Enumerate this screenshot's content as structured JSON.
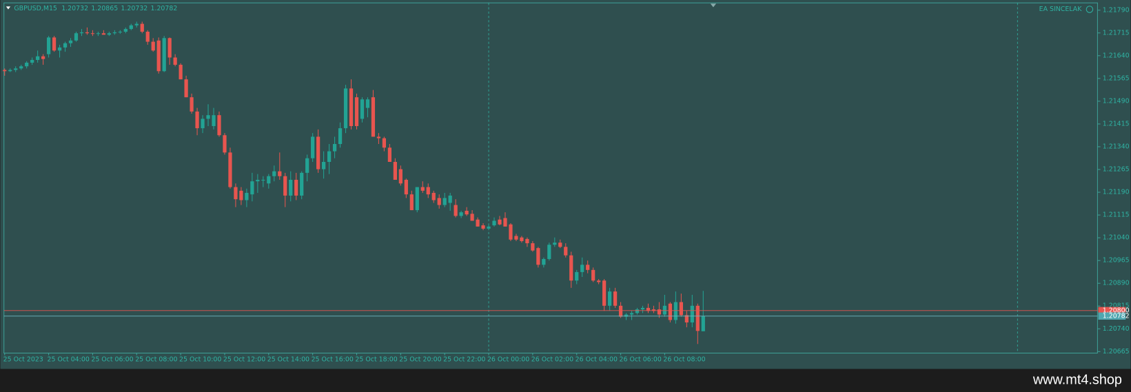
{
  "chart_data": {
    "type": "candlestick",
    "title": "GBPUSD,M15",
    "overlay_label": "EA SINCELAK",
    "watermark": "www.mt4.shop",
    "up_color": "#22a394",
    "down_color": "#e8554f",
    "ylim": [
      1.2066,
      1.21814
    ],
    "yticks": [
      1.20665,
      {
        "value": 1.2074,
        "label": "1.20740"
      },
      1.20815,
      {
        "value": 1.2089,
        "label": "1.20890"
      },
      1.20965,
      {
        "value": 1.2104,
        "label": "1.21040"
      },
      1.21115,
      {
        "value": 1.2119,
        "label": "1.21190"
      },
      1.21265,
      {
        "value": 1.2134,
        "label": "1.21340"
      },
      1.21415,
      {
        "value": 1.2149,
        "label": "1.21490"
      },
      1.21565,
      {
        "value": 1.2164,
        "label": "1.21640"
      },
      1.21715,
      {
        "value": 1.2179,
        "label": "1.21790"
      }
    ],
    "ask_line": {
      "value": 1.208,
      "label": "1.20800"
    },
    "categories": [
      "25 Oct 2023",
      null,
      null,
      null,
      null,
      null,
      null,
      null,
      "25 Oct 04:00",
      null,
      null,
      null,
      null,
      null,
      null,
      null,
      "25 Oct 06:00",
      null,
      null,
      null,
      null,
      null,
      null,
      null,
      "25 Oct 08:00",
      null,
      null,
      null,
      null,
      null,
      null,
      null,
      "25 Oct 10:00",
      null,
      null,
      null,
      null,
      null,
      null,
      null,
      "25 Oct 12:00",
      null,
      null,
      null,
      null,
      null,
      null,
      null,
      "25 Oct 14:00",
      null,
      null,
      null,
      null,
      null,
      null,
      null,
      "25 Oct 16:00",
      null,
      null,
      null,
      null,
      null,
      null,
      null,
      "25 Oct 18:00",
      null,
      null,
      null,
      null,
      null,
      null,
      null,
      "25 Oct 20:00",
      null,
      null,
      null,
      null,
      null,
      null,
      null,
      "25 Oct 22:00",
      null,
      null,
      null,
      null,
      null,
      null,
      null,
      "26 Oct 00:00",
      null,
      null,
      null,
      null,
      null,
      null,
      null,
      "26 Oct 02:00",
      null,
      null,
      null,
      null,
      null,
      null,
      null,
      "26 Oct 04:00",
      null,
      null,
      null,
      null,
      null,
      null,
      null,
      "26 Oct 06:00",
      null,
      null,
      null,
      null,
      null,
      null,
      null,
      "26 Oct 08:00",
      null,
      null,
      null,
      null,
      null,
      null,
      null
    ],
    "ohlc": [
      [
        1.21593,
        1.21598,
        1.21574,
        1.21589
      ],
      [
        1.21589,
        1.21598,
        1.21586,
        1.21593
      ],
      [
        1.21593,
        1.21605,
        1.21586,
        1.21598
      ],
      [
        1.21598,
        1.2161,
        1.21593,
        1.21605
      ],
      [
        1.21605,
        1.21622,
        1.21598,
        1.21617
      ],
      [
        1.21617,
        1.21634,
        1.2161,
        1.21626
      ],
      [
        1.21626,
        1.21657,
        1.21617,
        1.21638
      ],
      [
        1.21638,
        1.21645,
        1.2161,
        1.21629
      ],
      [
        1.21645,
        1.21705,
        1.21634,
        1.217
      ],
      [
        1.217,
        1.21705,
        1.21653,
        1.21657
      ],
      [
        1.21657,
        1.21676,
        1.21634,
        1.21667
      ],
      [
        1.21667,
        1.21686,
        1.21653,
        1.21681
      ],
      [
        1.21681,
        1.21698,
        1.21669,
        1.2169
      ],
      [
        1.2169,
        1.21719,
        1.21686,
        1.21714
      ],
      [
        1.21714,
        1.21728,
        1.21705,
        1.21717
      ],
      [
        1.21717,
        1.21733,
        1.21709,
        1.21714
      ],
      [
        1.21714,
        1.21724,
        1.21705,
        1.21712
      ],
      [
        1.21712,
        1.21719,
        1.21705,
        1.21714
      ],
      [
        1.21714,
        1.21724,
        1.21709,
        1.21709
      ],
      [
        1.21709,
        1.21719,
        1.21705,
        1.21714
      ],
      [
        1.21714,
        1.21724,
        1.21709,
        1.21717
      ],
      [
        1.21717,
        1.21724,
        1.21712,
        1.21719
      ],
      [
        1.21719,
        1.21733,
        1.21714,
        1.21728
      ],
      [
        1.21728,
        1.21745,
        1.21724,
        1.2174
      ],
      [
        1.2174,
        1.21752,
        1.21733,
        1.21745
      ],
      [
        1.21745,
        1.21752,
        1.21714,
        1.21719
      ],
      [
        1.21719,
        1.21724,
        1.21676,
        1.21686
      ],
      [
        1.21686,
        1.21698,
        1.21653,
        1.21657
      ],
      [
        1.2169,
        1.217,
        1.21581,
        1.21589
      ],
      [
        1.21589,
        1.21705,
        1.21586,
        1.21698
      ],
      [
        1.21698,
        1.217,
        1.2161,
        1.21634
      ],
      [
        1.21634,
        1.21645,
        1.21605,
        1.2161
      ],
      [
        1.2161,
        1.21615,
        1.21562,
        1.21562
      ],
      [
        1.21562,
        1.21574,
        1.21503,
        1.21503
      ],
      [
        1.21503,
        1.21515,
        1.21449,
        1.21456
      ],
      [
        1.21456,
        1.21468,
        1.21378,
        1.21401
      ],
      [
        1.21401,
        1.21444,
        1.21385,
        1.21432
      ],
      [
        1.21432,
        1.2148,
        1.21408,
        1.21444
      ],
      [
        1.21408,
        1.21468,
        1.21397,
        1.21444
      ],
      [
        1.21444,
        1.21456,
        1.21373,
        1.21378
      ],
      [
        1.21378,
        1.21385,
        1.21314,
        1.21321
      ],
      [
        1.21321,
        1.21337,
        1.21202,
        1.21207
      ],
      [
        1.21207,
        1.21219,
        1.21141,
        1.21167
      ],
      [
        1.21195,
        1.21207,
        1.21148,
        1.21164
      ],
      [
        1.21164,
        1.21202,
        1.21141,
        1.21188
      ],
      [
        1.21183,
        1.21254,
        1.2116,
        1.21226
      ],
      [
        1.21226,
        1.2125,
        1.21188,
        1.21231
      ],
      [
        1.21231,
        1.21243,
        1.21207,
        1.21231
      ],
      [
        1.21219,
        1.2125,
        1.21202,
        1.21243
      ],
      [
        1.21243,
        1.21278,
        1.21226,
        1.21259
      ],
      [
        1.21259,
        1.21321,
        1.21231,
        1.21243
      ],
      [
        1.21243,
        1.21254,
        1.21141,
        1.21179
      ],
      [
        1.21179,
        1.21259,
        1.2116,
        1.21231
      ],
      [
        1.21231,
        1.21254,
        1.21164,
        1.21179
      ],
      [
        1.21179,
        1.21259,
        1.21167,
        1.21254
      ],
      [
        1.21254,
        1.21314,
        1.21226,
        1.21302
      ],
      [
        1.21302,
        1.21385,
        1.2129,
        1.21373
      ],
      [
        1.21373,
        1.21397,
        1.21254,
        1.21266
      ],
      [
        1.21266,
        1.21325,
        1.21235,
        1.2129
      ],
      [
        1.2129,
        1.21349,
        1.2125,
        1.21325
      ],
      [
        1.21325,
        1.21373,
        1.21302,
        1.21349
      ],
      [
        1.21349,
        1.2142,
        1.21337,
        1.21401
      ],
      [
        1.21401,
        1.21544,
        1.21385,
        1.21532
      ],
      [
        1.21532,
        1.21562,
        1.21397,
        1.21408
      ],
      [
        1.21503,
        1.21515,
        1.21397,
        1.21408
      ],
      [
        1.21432,
        1.21503,
        1.2142,
        1.21496
      ],
      [
        1.21468,
        1.21503,
        1.21437,
        1.21496
      ],
      [
        1.21503,
        1.21527,
        1.21373,
        1.21373
      ],
      [
        1.21373,
        1.21385,
        1.21349,
        1.21368
      ],
      [
        1.21368,
        1.21373,
        1.21325,
        1.21337
      ],
      [
        1.21337,
        1.21349,
        1.2129,
        1.2129
      ],
      [
        1.2129,
        1.21302,
        1.21231,
        1.21231
      ],
      [
        1.21266,
        1.21278,
        1.21212,
        1.21219
      ],
      [
        1.21231,
        1.21235,
        1.21171,
        1.21183
      ],
      [
        1.21183,
        1.21195,
        1.21131,
        1.21131
      ],
      [
        1.21131,
        1.21207,
        1.21124,
        1.21207
      ],
      [
        1.21207,
        1.21226,
        1.21188,
        1.21195
      ],
      [
        1.21207,
        1.21219,
        1.21171,
        1.21183
      ],
      [
        1.21188,
        1.21195,
        1.21155,
        1.21164
      ],
      [
        1.21171,
        1.21183,
        1.21136,
        1.21148
      ],
      [
        1.21148,
        1.21188,
        1.21141,
        1.21171
      ],
      [
        1.21155,
        1.21188,
        1.21129,
        1.21179
      ],
      [
        1.21148,
        1.21167,
        1.21107,
        1.21112
      ],
      [
        1.21112,
        1.21129,
        1.21105,
        1.21124
      ],
      [
        1.21129,
        1.21141,
        1.21112,
        1.21117
      ],
      [
        1.21119,
        1.21131,
        1.21096,
        1.21096
      ],
      [
        1.211,
        1.21107,
        1.21077,
        1.21077
      ],
      [
        1.21081,
        1.21088,
        1.21065,
        1.2107
      ],
      [
        1.2107,
        1.21084,
        1.21065,
        1.21077
      ],
      [
        1.21081,
        1.21107,
        1.21077,
        1.21096
      ],
      [
        1.211,
        1.21112,
        1.21081,
        1.21084
      ],
      [
        1.21105,
        1.21124,
        1.21077,
        1.21077
      ],
      [
        1.21084,
        1.21088,
        1.21029,
        1.21034
      ],
      [
        1.21046,
        1.21053,
        1.21029,
        1.21034
      ],
      [
        1.21041,
        1.21046,
        1.21024,
        1.21029
      ],
      [
        1.21036,
        1.21041,
        1.2101,
        1.21022
      ],
      [
        1.21022,
        1.21029,
        1.20994,
        1.20998
      ],
      [
        1.21006,
        1.2101,
        1.20942,
        1.20951
      ],
      [
        1.20951,
        1.20975,
        1.20942,
        1.2097
      ],
      [
        1.2097,
        1.21024,
        1.20965,
        1.21017
      ],
      [
        1.21017,
        1.21041,
        1.2101,
        1.21024
      ],
      [
        1.21024,
        1.21034,
        1.21006,
        1.2101
      ],
      [
        1.2101,
        1.21022,
        1.20975,
        1.20982
      ],
      [
        1.20982,
        1.20994,
        1.20875,
        1.20899
      ],
      [
        1.20899,
        1.20934,
        1.20887,
        1.20927
      ],
      [
        1.20927,
        1.20975,
        1.20911,
        1.20951
      ],
      [
        1.20951,
        1.20965,
        1.20923,
        1.20934
      ],
      [
        1.20934,
        1.20942,
        1.20894,
        1.20899
      ],
      [
        1.20899,
        1.20904,
        1.20887,
        1.20894
      ],
      [
        1.20899,
        1.20904,
        1.20799,
        1.20816
      ],
      [
        1.20816,
        1.20875,
        1.20799,
        1.20863
      ],
      [
        1.20863,
        1.20875,
        1.20809,
        1.20816
      ],
      [
        1.20816,
        1.20828,
        1.20776,
        1.2078
      ],
      [
        1.2078,
        1.20792,
        1.20769,
        1.20787
      ],
      [
        1.20787,
        1.20799,
        1.20769,
        1.20792
      ],
      [
        1.20792,
        1.20809,
        1.20787,
        1.20804
      ],
      [
        1.20804,
        1.20816,
        1.20792,
        1.20809
      ],
      [
        1.20809,
        1.20823,
        1.20792,
        1.20799
      ],
      [
        1.20804,
        1.20816,
        1.20792,
        1.20799
      ],
      [
        1.20804,
        1.20828,
        1.20776,
        1.20787
      ],
      [
        1.20787,
        1.20852,
        1.2078,
        1.20816
      ],
      [
        1.20823,
        1.20828,
        1.20761,
        1.20769
      ],
      [
        1.20769,
        1.20863,
        1.20757,
        1.20828
      ],
      [
        1.20828,
        1.20856,
        1.2078,
        1.20785
      ],
      [
        1.20785,
        1.20799,
        1.20745,
        1.20761
      ],
      [
        1.20761,
        1.20852,
        1.20745,
        1.20816
      ],
      [
        1.20816,
        1.20823,
        1.2069,
        1.20733
      ],
      [
        1.20732,
        1.20865,
        1.20732,
        1.20782
      ]
    ]
  }
}
